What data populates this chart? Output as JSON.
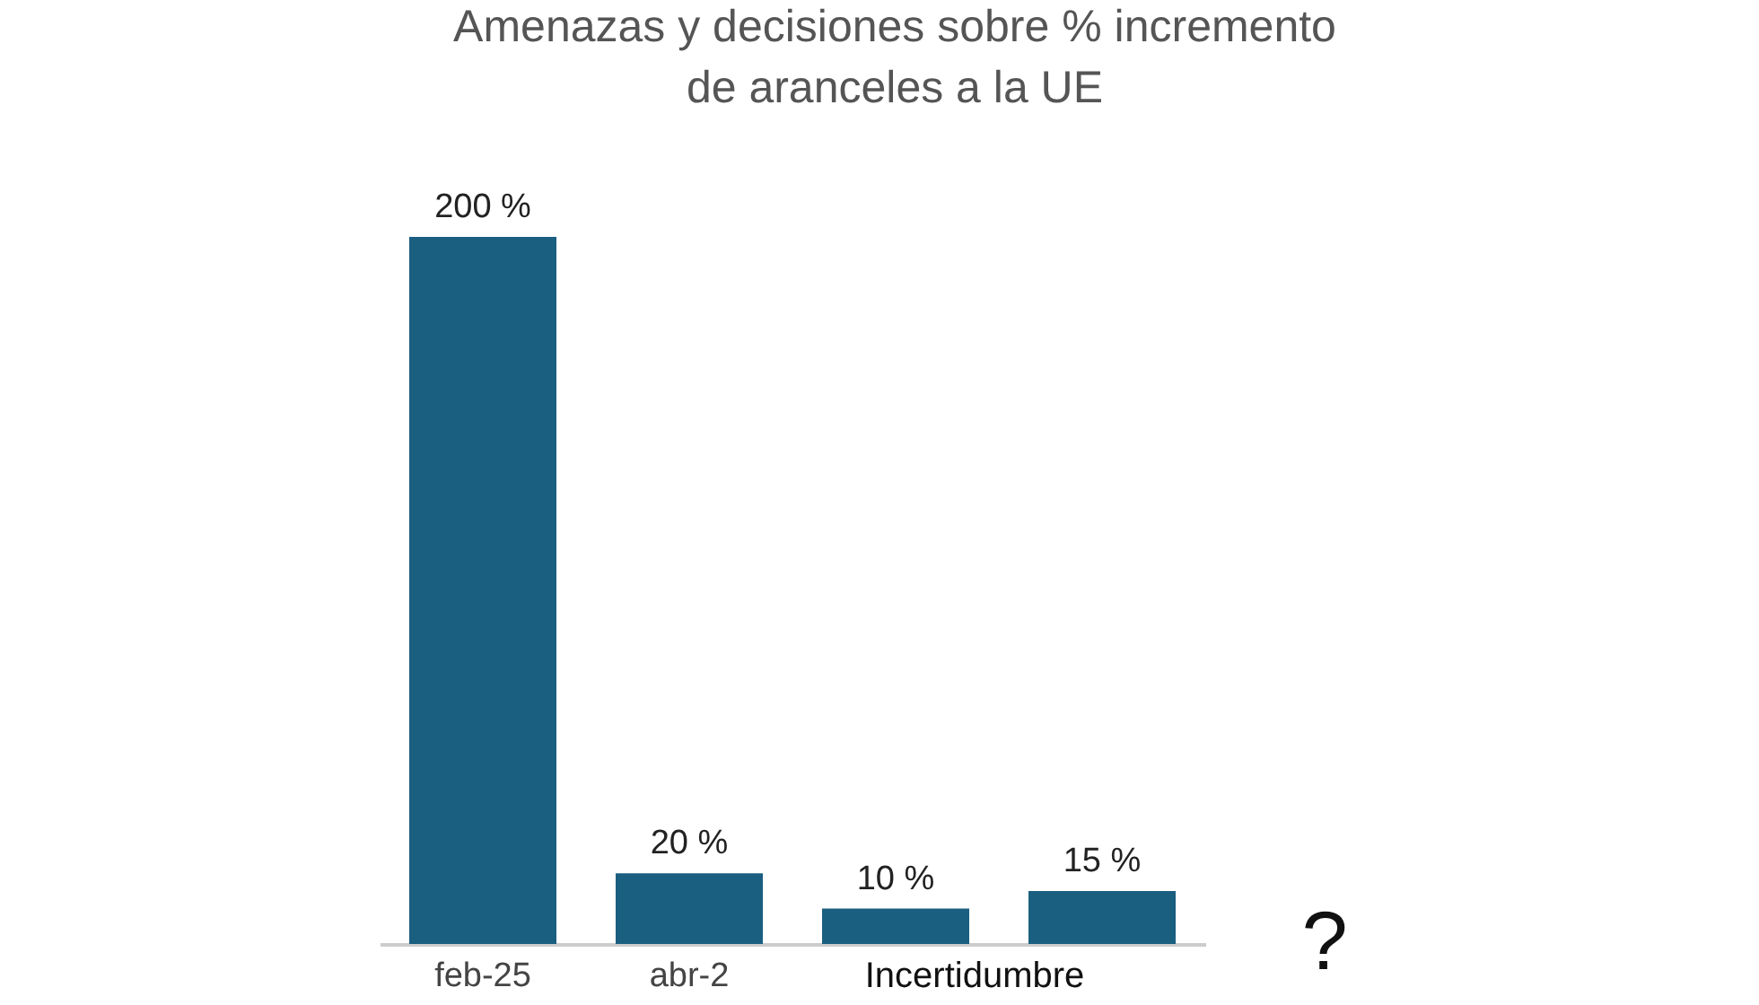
{
  "chart_data": {
    "type": "bar",
    "title": "Amenazas y decisiones sobre % incremento\nde aranceles a la UE",
    "categories": [
      "feb-25",
      "abr-2",
      null,
      null
    ],
    "values": [
      200,
      20,
      10,
      15
    ],
    "color": "#1a5e80",
    "value_labels": [
      "200 %",
      "20 %",
      "10 %",
      "15 %"
    ],
    "annotations": [
      "Incertidumbre",
      "?"
    ],
    "tick_labels": "x"
  }
}
